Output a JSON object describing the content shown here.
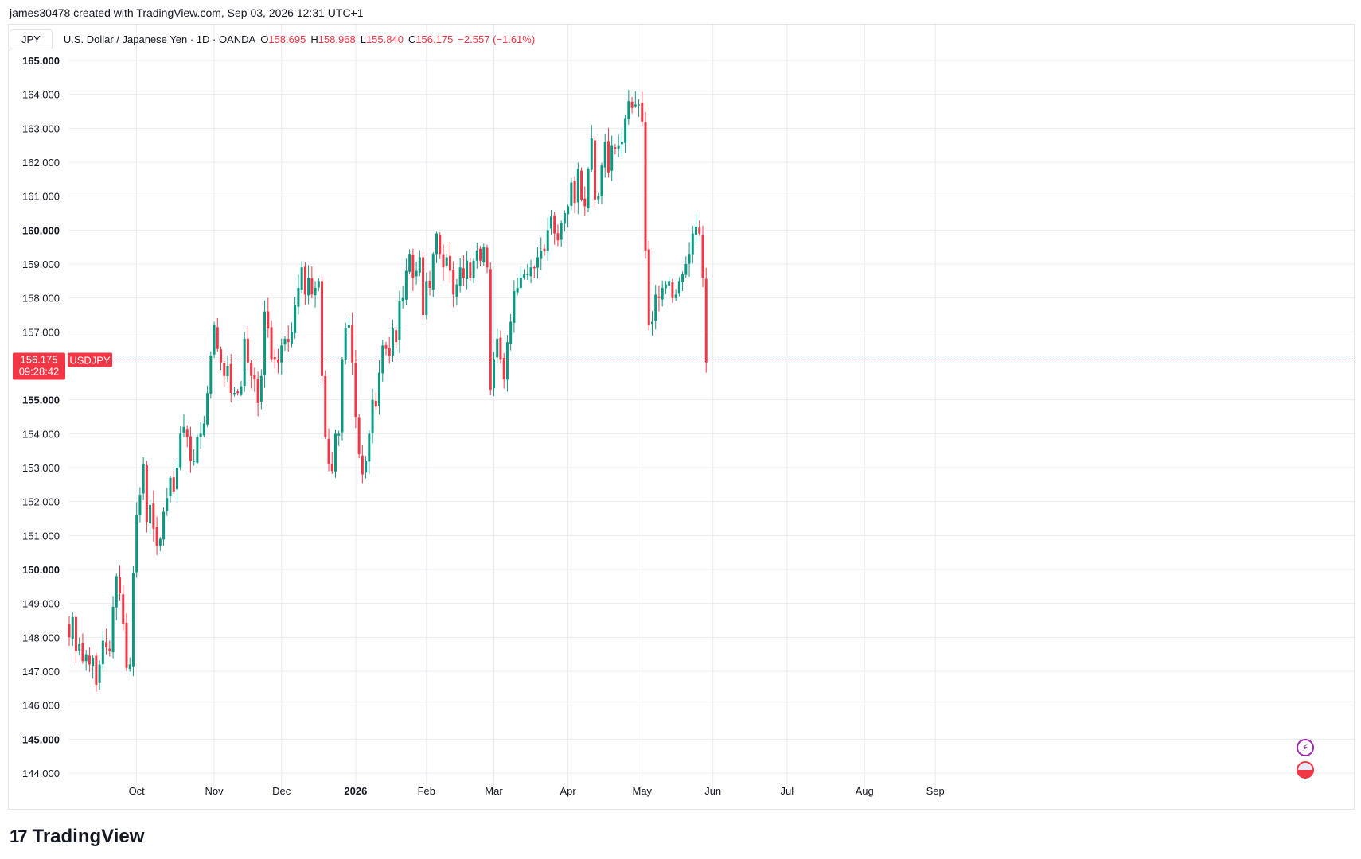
{
  "header": {
    "attribution": "james30478 created with TradingView.com, Sep 03, 2026 12:31 UTC+1"
  },
  "legend": {
    "symbol_box": "JPY",
    "instrument": "U.S. Dollar / Japanese Yen · 1D · OANDA",
    "o_label": "O",
    "o_value": "158.695",
    "h_label": "H",
    "h_value": "158.968",
    "l_label": "L",
    "l_value": "155.840",
    "c_label": "C",
    "c_value": "156.175",
    "change": "−2.557 (−1.61%)"
  },
  "price_tag": {
    "symbol": "USDJPY",
    "price": "156.175",
    "countdown": "09:28:42"
  },
  "footer": {
    "brand": "TradingView",
    "logo_mark": "17"
  },
  "icons": {
    "alert": "lightning-icon",
    "events": "us-flag-icon"
  },
  "colors": {
    "up": "#089981",
    "down": "#f23645",
    "grid": "#e9ebf0",
    "text": "#131722"
  },
  "chart_data": {
    "type": "candlestick",
    "ylim": [
      144.0,
      165.0
    ],
    "y_ticks": [
      {
        "value": 165,
        "label": "165.000",
        "bold": true
      },
      {
        "value": 164,
        "label": "164.000",
        "bold": false
      },
      {
        "value": 163,
        "label": "163.000",
        "bold": false
      },
      {
        "value": 162,
        "label": "162.000",
        "bold": false
      },
      {
        "value": 161,
        "label": "161.000",
        "bold": false
      },
      {
        "value": 160,
        "label": "160.000",
        "bold": true
      },
      {
        "value": 159,
        "label": "159.000",
        "bold": false
      },
      {
        "value": 158,
        "label": "158.000",
        "bold": false
      },
      {
        "value": 157,
        "label": "157.000",
        "bold": false
      },
      {
        "value": 155,
        "label": "155.000",
        "bold": true
      },
      {
        "value": 154,
        "label": "154.000",
        "bold": false
      },
      {
        "value": 153,
        "label": "153.000",
        "bold": false
      },
      {
        "value": 152,
        "label": "152.000",
        "bold": false
      },
      {
        "value": 151,
        "label": "151.000",
        "bold": false
      },
      {
        "value": 150,
        "label": "150.000",
        "bold": true
      },
      {
        "value": 149,
        "label": "149.000",
        "bold": false
      },
      {
        "value": 148,
        "label": "148.000",
        "bold": false
      },
      {
        "value": 147,
        "label": "147.000",
        "bold": false
      },
      {
        "value": 146,
        "label": "146.000",
        "bold": false
      },
      {
        "value": 145,
        "label": "145.000",
        "bold": true
      },
      {
        "value": 144,
        "label": "144.000",
        "bold": false
      }
    ],
    "x_ticks": [
      {
        "label": "Oct",
        "bar": 20,
        "bold": false
      },
      {
        "label": "Nov",
        "bar": 43,
        "bold": false
      },
      {
        "label": "Dec",
        "bar": 63,
        "bold": false
      },
      {
        "label": "2026",
        "bar": 85,
        "bold": true
      },
      {
        "label": "Feb",
        "bar": 106,
        "bold": false
      },
      {
        "label": "Mar",
        "bar": 126,
        "bold": false
      },
      {
        "label": "Apr",
        "bar": 148,
        "bold": false
      },
      {
        "label": "May",
        "bar": 170,
        "bold": false
      },
      {
        "label": "Jun",
        "bar": 191,
        "bold": false
      },
      {
        "label": "Jul",
        "bar": 213,
        "bold": false
      },
      {
        "label": "Aug",
        "bar": 236,
        "bold": false
      },
      {
        "label": "Sep",
        "bar": 257,
        "bold": false
      }
    ],
    "last_price": 156.175,
    "closes": [
      148.0,
      148.6,
      147.6,
      147.8,
      147.3,
      147.5,
      147.2,
      147.4,
      146.6,
      147.2,
      147.9,
      147.7,
      147.6,
      148.9,
      149.8,
      149.3,
      148.4,
      147.1,
      147.2,
      149.9,
      151.6,
      152.2,
      153.1,
      151.4,
      151.9,
      151.2,
      150.7,
      150.9,
      151.7,
      152.1,
      152.7,
      152.3,
      153.0,
      154.0,
      154.2,
      153.9,
      153.2,
      153.2,
      153.9,
      154.0,
      154.3,
      155.2,
      156.3,
      157.2,
      156.5,
      156.1,
      155.7,
      156.0,
      155.2,
      155.2,
      155.2,
      155.4,
      156.8,
      156.1,
      155.7,
      155.6,
      154.9,
      155.7,
      157.6,
      157.1,
      156.2,
      156.2,
      156.1,
      156.6,
      156.8,
      156.7,
      157.0,
      157.8,
      158.3,
      158.9,
      158.1,
      158.6,
      158.1,
      158.3,
      158.5,
      155.7,
      153.9,
      153.1,
      152.9,
      154.0,
      154.0,
      156.2,
      157.1,
      157.2,
      156.1,
      154.5,
      153.4,
      152.8,
      153.2,
      154.0,
      155.0,
      154.8,
      155.8,
      156.6,
      156.5,
      156.3,
      157.1,
      156.7,
      157.9,
      158.0,
      158.8,
      159.3,
      158.6,
      158.8,
      159.2,
      157.5,
      158.5,
      158.3,
      159.3,
      159.9,
      159.3,
      158.9,
      159.2,
      158.8,
      158.1,
      158.4,
      158.9,
      158.6,
      159.1,
      158.6,
      159.1,
      159.4,
      159.1,
      159.5,
      158.9,
      155.3,
      156.2,
      156.8,
      156.2,
      155.6,
      156.7,
      157.3,
      158.2,
      158.3,
      158.6,
      158.7,
      158.7,
      158.9,
      158.9,
      159.2,
      159.4,
      159.4,
      160.0,
      160.4,
      159.9,
      159.7,
      160.2,
      160.5,
      160.7,
      161.4,
      160.8,
      161.8,
      160.9,
      160.7,
      161.8,
      162.7,
      160.9,
      161.0,
      161.9,
      162.6,
      161.7,
      162.5,
      162.4,
      162.5,
      162.6,
      163.3,
      163.8,
      163.6,
      163.7,
      163.7,
      163.2,
      159.4,
      157.2,
      157.3,
      158.1,
      158.0,
      158.3,
      158.4,
      158.5,
      158.0,
      158.1,
      158.5,
      158.7,
      159.0,
      159.3,
      159.9,
      160.1,
      159.9,
      158.6,
      156.1
    ]
  }
}
